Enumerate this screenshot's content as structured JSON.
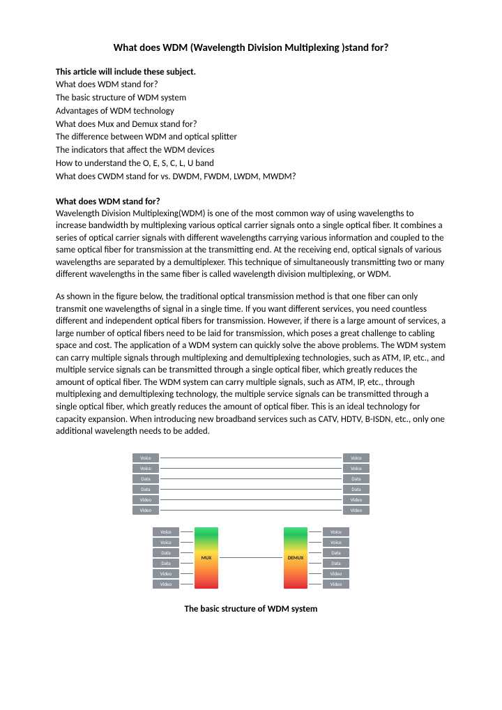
{
  "title": "What does WDM (Wavelength Division Multiplexing )stand for?",
  "toc": {
    "header": "This article will include these subject.",
    "items": [
      "What does WDM stand for?",
      "The basic structure of WDM system",
      "Advantages of WDM technology",
      "What does Mux and Demux stand for?",
      "The difference between WDM and optical splitter",
      "The indicators that affect the WDM devices",
      "How to understand the O, E, S, C, L, U band",
      "What does CWDM stand for vs. DWDM, FWDM, LWDM, MWDM?"
    ]
  },
  "section1": {
    "header": "What does WDM stand for?",
    "p1": "Wavelength Division Multiplexing(WDM) is one of the most common way of using wavelengths to increase bandwidth by multiplexing various optical carrier signals onto a single optical fiber. It combines a series of optical carrier signals with different wavelengths carrying various information and coupled to the same optical fiber for transmission at the transmitting end. At the receiving end, optical signals of various wavelengths are separated by a demultiplexer. This technique of simultaneously transmitting two or many different wavelengths in the same fiber is called wavelength division multiplexing, or WDM.",
    "p2": "As shown in the figure below, the traditional optical transmission method is that one fiber can only transmit one wavelengths of signal in a single time. If you want different services, you need countless different and independent optical fibers for transmission. However, if there is a large amount of services, a large number of optical fibers need to be laid for transmission, which poses a great challenge to cabling space and cost. The application of a WDM system can quickly solve the above problems. The WDM system can carry multiple signals through multiplexing and demultiplexing technologies, such as ATM, IP, etc., and multiple service signals can be transmitted through a single optical fiber, which greatly reduces the amount of optical fiber. The WDM system can carry multiple signals, such as ATM, IP, etc., through multiplexing and demultiplexing technology, the multiple service signals can be transmitted through a single optical fiber, which greatly reduces the amount of optical fiber. This is an ideal technology for capacity expansion. When introducing new broadband services such as CATV, HDTV, B-ISDN, etc., only one additional wavelength needs to be added."
  },
  "diagram": {
    "signals": [
      "Voice",
      "Voice",
      "Data",
      "Data",
      "Video",
      "Video"
    ],
    "mux_label": "MUX",
    "demux_label": "DEMUX",
    "label_bg": "#8a9199",
    "label_fg": "#ffffff",
    "line_color": "#6b7280"
  },
  "caption": "The basic structure of WDM system"
}
